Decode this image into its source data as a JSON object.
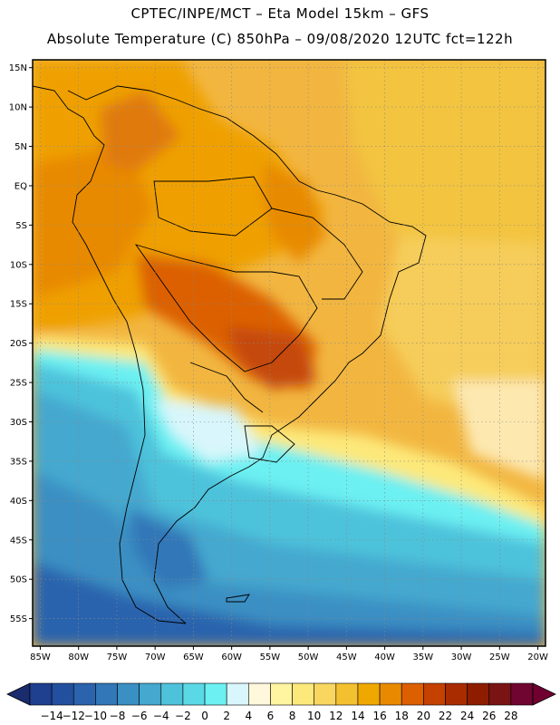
{
  "header": {
    "line1": "CPTEC/INPE/MCT –  Eta Model 15km – GFS",
    "line2": "Absolute Temperature (C) 850hPa – 09/08/2020 12UTC fct=122h"
  },
  "map": {
    "lon_range": [
      -86,
      -19
    ],
    "lat_range": [
      -58.5,
      16
    ],
    "lon_ticks": [
      {
        "value": -85,
        "label": "85W"
      },
      {
        "value": -80,
        "label": "80W"
      },
      {
        "value": -75,
        "label": "75W"
      },
      {
        "value": -70,
        "label": "70W"
      },
      {
        "value": -65,
        "label": "65W"
      },
      {
        "value": -60,
        "label": "60W"
      },
      {
        "value": -55,
        "label": "55W"
      },
      {
        "value": -50,
        "label": "50W"
      },
      {
        "value": -45,
        "label": "45W"
      },
      {
        "value": -40,
        "label": "40W"
      },
      {
        "value": -35,
        "label": "35W"
      },
      {
        "value": -30,
        "label": "30W"
      },
      {
        "value": -25,
        "label": "25W"
      },
      {
        "value": -20,
        "label": "20W"
      }
    ],
    "lat_ticks": [
      {
        "value": 15,
        "label": "15N"
      },
      {
        "value": 10,
        "label": "10N"
      },
      {
        "value": 5,
        "label": "5N"
      },
      {
        "value": 0,
        "label": "EQ"
      },
      {
        "value": -5,
        "label": "5S"
      },
      {
        "value": -10,
        "label": "10S"
      },
      {
        "value": -15,
        "label": "15S"
      },
      {
        "value": -20,
        "label": "20S"
      },
      {
        "value": -25,
        "label": "25S"
      },
      {
        "value": -30,
        "label": "30S"
      },
      {
        "value": -35,
        "label": "35S"
      },
      {
        "value": -40,
        "label": "40S"
      },
      {
        "value": -45,
        "label": "45S"
      },
      {
        "value": -50,
        "label": "50S"
      },
      {
        "value": -55,
        "label": "55S"
      }
    ]
  },
  "colorbar": {
    "labels": [
      "-14",
      "-12",
      "-10",
      "-8",
      "-6",
      "-4",
      "-2",
      "0",
      "2",
      "4",
      "6",
      "8",
      "10",
      "12",
      "14",
      "16",
      "18",
      "20",
      "22",
      "24",
      "26",
      "28"
    ],
    "colors": [
      "#1f3f8f",
      "#23509e",
      "#2b63ad",
      "#3277b8",
      "#3a8fc3",
      "#44a8cf",
      "#4ec2db",
      "#5ad8e6",
      "#6cf0f2",
      "#d8f6fb",
      "#fff8dc",
      "#fff4a0",
      "#fde97a",
      "#f8d660",
      "#f3c030",
      "#efa800",
      "#e88a00",
      "#dc5f00",
      "#c54100",
      "#a92c00",
      "#8e1d00",
      "#7a1414",
      "#6f0530"
    ],
    "left_arrow": "#1a2b6e",
    "right_arrow": "#700030"
  }
}
